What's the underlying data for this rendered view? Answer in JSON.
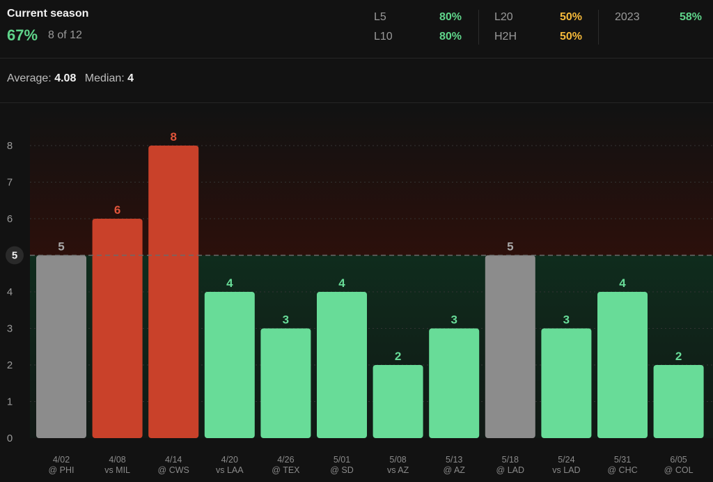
{
  "header": {
    "title": "Current season",
    "pct": "67%",
    "count": "8 of 12"
  },
  "stats": [
    {
      "label": "L5",
      "value": "80%",
      "color": "#5fd48a"
    },
    {
      "label": "L10",
      "value": "80%",
      "color": "#5fd48a"
    },
    {
      "label": "L20",
      "value": "50%",
      "color": "#f5b93a"
    },
    {
      "label": "H2H",
      "value": "50%",
      "color": "#f5b93a"
    },
    {
      "label": "2023",
      "value": "58%",
      "color": "#5fd48a"
    }
  ],
  "summary": {
    "average_label": "Average:",
    "average_value": "4.08",
    "median_label": "Median:",
    "median_value": "4"
  },
  "colors": {
    "over": "#c9412a",
    "under": "#68dc98",
    "push": "#8c8c8c"
  },
  "chart_data": {
    "type": "bar",
    "line": 5,
    "ylim": [
      0,
      8
    ],
    "yticks": [
      0,
      1,
      2,
      3,
      4,
      5,
      6,
      7,
      8
    ],
    "categories": [
      {
        "date": "4/02",
        "opp": "@ PHI"
      },
      {
        "date": "4/08",
        "opp": "vs MIL"
      },
      {
        "date": "4/14",
        "opp": "@ CWS"
      },
      {
        "date": "4/20",
        "opp": "vs LAA"
      },
      {
        "date": "4/26",
        "opp": "@ TEX"
      },
      {
        "date": "5/01",
        "opp": "@ SD"
      },
      {
        "date": "5/08",
        "opp": "vs AZ"
      },
      {
        "date": "5/13",
        "opp": "@ AZ"
      },
      {
        "date": "5/18",
        "opp": "@ LAD"
      },
      {
        "date": "5/24",
        "opp": "vs LAD"
      },
      {
        "date": "5/31",
        "opp": "@ CHC"
      },
      {
        "date": "6/05",
        "opp": "@ COL"
      }
    ],
    "values": [
      5,
      6,
      8,
      4,
      3,
      4,
      2,
      3,
      5,
      3,
      4,
      2
    ]
  }
}
